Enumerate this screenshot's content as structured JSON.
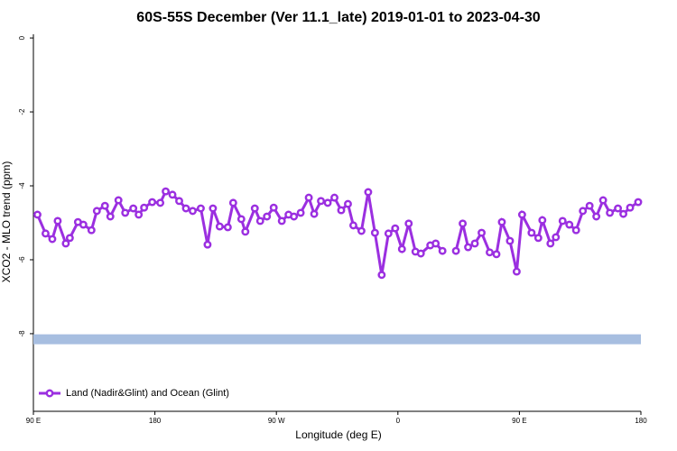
{
  "chart_data": {
    "type": "line",
    "title": "60S-55S December (Ver 11.1_late)   2019-01-01 to 2023-04-30",
    "x_label": "Longitude (deg E)",
    "y_label": "XCO2 - MLO trend (ppm)",
    "x": [
      93,
      99,
      104,
      108,
      114,
      117,
      123,
      127,
      133,
      137,
      143,
      147,
      153,
      158,
      164,
      168,
      172,
      178,
      184,
      188,
      193,
      198,
      203,
      208,
      214,
      219,
      223,
      228,
      234,
      238,
      244,
      247,
      254,
      258,
      263,
      268,
      274,
      279,
      283,
      288,
      294,
      298,
      303,
      308,
      313,
      318,
      323,
      327,
      333,
      338,
      343,
      348,
      353,
      358,
      363,
      368,
      373,
      377,
      384,
      388,
      393,
      398,
      403,
      408,
      412,
      417,
      422,
      428,
      433,
      437,
      443,
      448,
      452,
      459,
      464,
      467,
      473,
      477,
      482,
      487,
      492,
      497,
      502,
      507,
      512,
      517,
      523,
      527,
      532,
      538
    ],
    "series": [
      {
        "name": "Land (Nadir&Glint) and Ocean (Glint)",
        "color": "#9b2fe0",
        "values": [
          -4.78,
          -5.29,
          -5.44,
          -4.95,
          -5.56,
          -5.41,
          -4.98,
          -5.05,
          -5.2,
          -4.68,
          -4.54,
          -4.83,
          -4.39,
          -4.73,
          -4.61,
          -4.78,
          -4.59,
          -4.44,
          -4.46,
          -4.15,
          -4.24,
          -4.41,
          -4.61,
          -4.68,
          -4.61,
          -5.59,
          -4.61,
          -5.1,
          -5.12,
          -4.46,
          -4.9,
          -5.24,
          -4.61,
          -4.95,
          -4.83,
          -4.59,
          -4.95,
          -4.78,
          -4.83,
          -4.73,
          -4.32,
          -4.76,
          -4.41,
          -4.46,
          -4.32,
          -4.66,
          -4.49,
          -5.07,
          -5.22,
          -4.17,
          -5.27,
          -6.41,
          -5.29,
          -5.15,
          -5.71,
          -5.02,
          -5.78,
          -5.83,
          -5.61,
          -5.56,
          -5.76,
          null,
          -5.76,
          -5.02,
          -5.66,
          -5.56,
          -5.27,
          -5.8,
          -5.85,
          -4.98,
          -5.49,
          -6.32,
          -4.78,
          -5.27,
          -5.41,
          -4.93,
          -5.56,
          -5.39,
          -4.95,
          -5.05,
          -5.2,
          -4.68,
          -4.54,
          -4.83,
          -4.39,
          -4.73,
          -4.61,
          -4.76,
          -4.59,
          -4.44
        ]
      }
    ],
    "band_y": -8.15,
    "band_color": "#a7bee0",
    "xlim": [
      90,
      540
    ],
    "xticks": [
      {
        "value": 90,
        "label": "90 E"
      },
      {
        "value": 180,
        "label": "180"
      },
      {
        "value": 270,
        "label": "90 W"
      },
      {
        "value": 360,
        "label": "0"
      },
      {
        "value": 450,
        "label": "90 E"
      },
      {
        "value": 540,
        "label": "180"
      }
    ],
    "ylim": [
      -10.1,
      0.1
    ],
    "yticks": [
      0,
      -2,
      -4,
      -6,
      -8
    ],
    "legend": "bottom-left"
  }
}
